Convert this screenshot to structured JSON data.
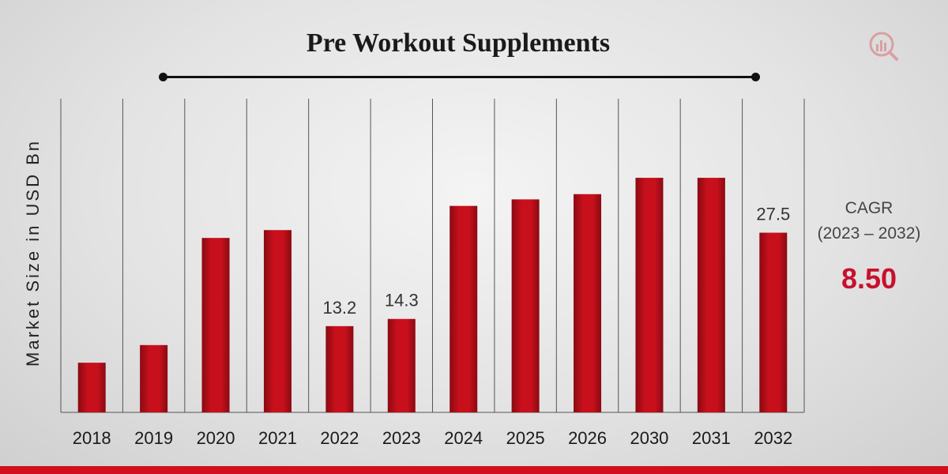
{
  "chart_data": {
    "type": "bar",
    "title": "Pre Workout Supplements",
    "ylabel": "Market Size in USD Bn",
    "xlabel": "",
    "categories": [
      "2018",
      "2019",
      "2020",
      "2021",
      "2022",
      "2023",
      "2024",
      "2025",
      "2026",
      "2030",
      "2031",
      "2032"
    ],
    "values": [
      7.6,
      10.3,
      26.7,
      27.9,
      13.2,
      14.3,
      31.6,
      32.6,
      33.4,
      35.9,
      35.9,
      27.5
    ],
    "data_labels": [
      {
        "index": 4,
        "text": "13.2"
      },
      {
        "index": 5,
        "text": "14.3"
      },
      {
        "index": 11,
        "text": "27.5"
      }
    ],
    "ylim": [
      0,
      48
    ],
    "grid": "vertical category dividers",
    "legend": "none"
  },
  "cagr": {
    "label": "CAGR",
    "period": "(2023 – 2032)",
    "value": "8.50"
  },
  "colors": {
    "bar": "#c8101c",
    "bar_dark": "#8a0a12",
    "accent": "#d0101c",
    "divider": "#555555"
  }
}
